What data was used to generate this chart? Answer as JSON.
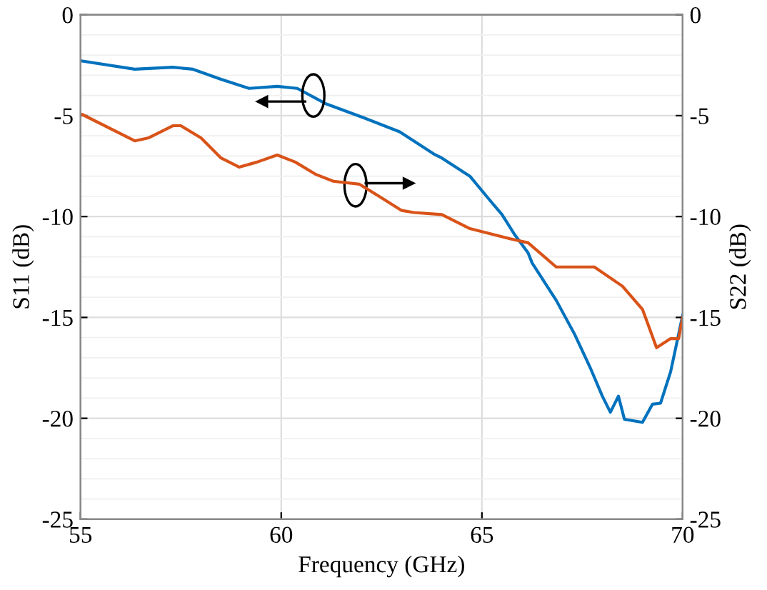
{
  "chart_data": {
    "type": "line",
    "xlabel": "Frequency (GHz)",
    "ylabel": "S11 (dB)",
    "y2label": "S22 (dB)",
    "xlim": [
      55,
      70
    ],
    "xticks": [
      55,
      60,
      65,
      70
    ],
    "ylim": [
      -25,
      0
    ],
    "yticks": [
      -25,
      -20,
      -15,
      -10,
      -5,
      0
    ],
    "y2lim": [
      -25,
      0
    ],
    "y2ticks": [
      -25,
      -20,
      -15,
      -10,
      -5,
      0
    ],
    "grid": true,
    "legend": false,
    "line_style": "solid",
    "marker": "none",
    "series": [
      {
        "color": "#0072bd",
        "x": [
          55.05,
          56.35,
          57.3,
          57.8,
          58.5,
          59.2,
          59.9,
          60.4,
          61.1,
          62.05,
          62.95,
          63.3,
          63.8,
          64.0,
          64.7,
          65.2,
          65.5,
          65.8,
          66.15,
          66.25,
          66.85,
          67.3,
          67.7,
          68.0,
          68.2,
          68.4,
          68.55,
          69.0,
          69.25,
          69.45,
          69.7,
          70.0
        ],
        "values": [
          -2.3,
          -2.7,
          -2.6,
          -2.7,
          -3.2,
          -3.65,
          -3.55,
          -3.65,
          -4.4,
          -5.1,
          -5.8,
          -6.25,
          -6.9,
          -7.1,
          -8.0,
          -9.2,
          -9.9,
          -10.85,
          -11.8,
          -12.3,
          -14.15,
          -15.8,
          -17.5,
          -18.9,
          -19.7,
          -18.9,
          -20.05,
          -20.2,
          -19.3,
          -19.25,
          -17.7,
          -14.9
        ]
      },
      {
        "color": "#d95319",
        "axis": "y2",
        "x": [
          55.05,
          56.35,
          56.7,
          57.3,
          57.5,
          58.0,
          58.5,
          58.95,
          59.4,
          59.9,
          60.35,
          60.85,
          61.3,
          61.95,
          62.4,
          63.0,
          63.3,
          64.0,
          64.7,
          65.7,
          66.15,
          66.85,
          67.8,
          68.5,
          69.0,
          69.35,
          69.7,
          69.9,
          70.0
        ],
        "values": [
          -4.95,
          -6.25,
          -6.1,
          -5.5,
          -5.5,
          -6.1,
          -7.1,
          -7.55,
          -7.3,
          -6.95,
          -7.3,
          -7.9,
          -8.25,
          -8.4,
          -8.95,
          -9.7,
          -9.8,
          -9.9,
          -10.6,
          -11.1,
          -11.3,
          -12.5,
          -12.5,
          -13.45,
          -14.6,
          -16.5,
          -16.05,
          -16.05,
          -15.0
        ]
      }
    ]
  }
}
